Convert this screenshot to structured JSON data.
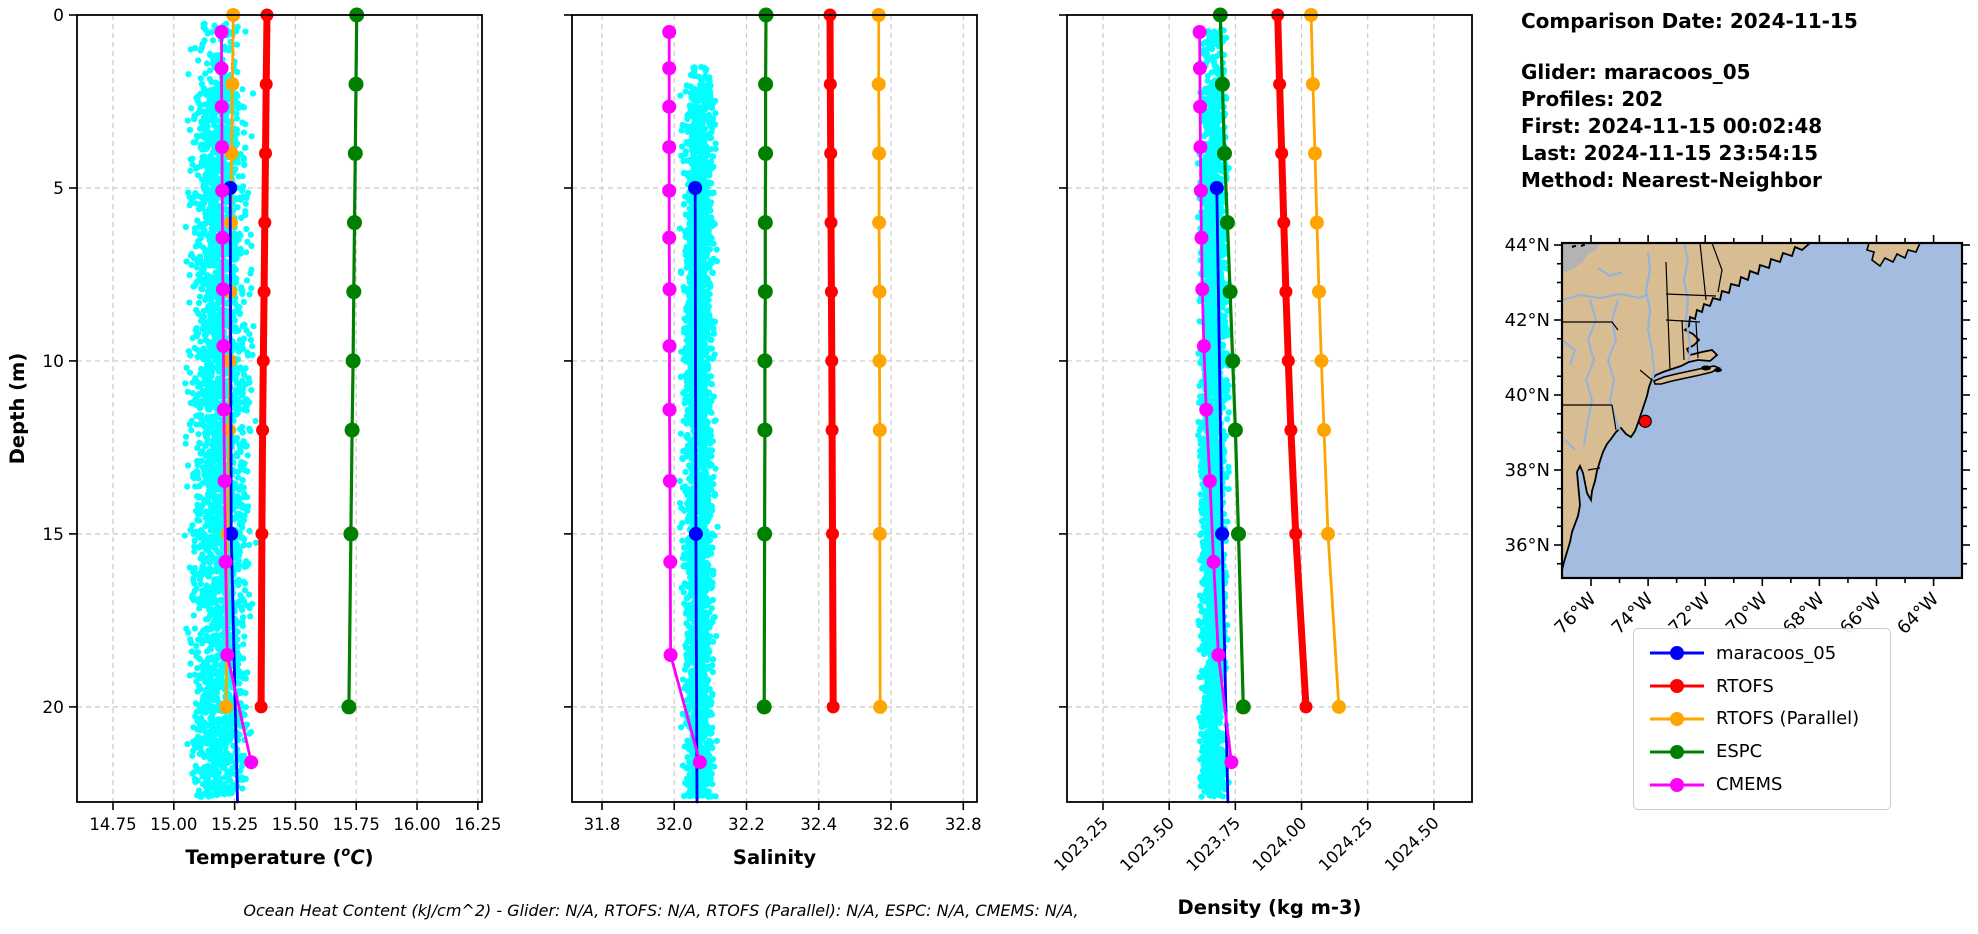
{
  "info_panel": {
    "comparison_date": "Comparison Date: 2024-11-15",
    "glider": "Glider: maracoos_05",
    "profiles": "Profiles: 202",
    "first": "First: 2024-11-15 00:02:48",
    "last": "Last: 2024-11-15 23:54:15",
    "method": "Method: Nearest-Neighbor"
  },
  "legend": {
    "items": [
      {
        "label": "maracoos_05",
        "color": "#0000ff"
      },
      {
        "label": "RTOFS",
        "color": "#ff0000"
      },
      {
        "label": "RTOFS (Parallel)",
        "color": "#ffa500"
      },
      {
        "label": "ESPC",
        "color": "#008000"
      },
      {
        "label": "CMEMS",
        "color": "#ff00ff"
      }
    ]
  },
  "caption": "Ocean Heat Content (kJ/cm^2) - Glider: N/A,  RTOFS: N/A,  RTOFS (Parallel): N/A,  ESPC: N/A,  CMEMS: N/A,",
  "colors": {
    "scatter": "#00ffff",
    "grid": "#c9c9c9",
    "axis": "#000000"
  },
  "chart_data": [
    {
      "id": "temperature",
      "type": "line+scatter",
      "xlabel": {
        "pre": "Temperature (",
        "sup": "o",
        "it": "C",
        "post": ")"
      },
      "ylabel": "Depth (m)",
      "xlim": [
        14.602,
        16.267
      ],
      "xticks": [
        14.75,
        15.0,
        15.25,
        15.5,
        15.75,
        16.0,
        16.25
      ],
      "xtick_labels": [
        "14.75",
        "15.00",
        "15.25",
        "15.50",
        "15.75",
        "16.00",
        "16.25"
      ],
      "xtick_rotation": 0,
      "ylim": [
        0,
        22.75
      ],
      "yticks": [
        0,
        5,
        10,
        15,
        20
      ],
      "ytick_labels": [
        "0",
        "5",
        "10",
        "15",
        "20"
      ],
      "show_ytick_labels": true,
      "grid": true,
      "scatter": {
        "name": "glider-profiles-cloud",
        "center": 15.19,
        "spread": 0.085,
        "clip": 0.148,
        "dmin": 0.25,
        "dmax": 22.6,
        "n": 3200
      },
      "series": [
        {
          "name": "RTOFS",
          "color": "#ff0000",
          "width": 7,
          "marker_r": 6.5,
          "depths": [
            0,
            2,
            4,
            6,
            8,
            10,
            12,
            15,
            20
          ],
          "values": [
            15.383,
            15.38,
            15.377,
            15.374,
            15.371,
            15.368,
            15.365,
            15.362,
            15.359
          ]
        },
        {
          "name": "RTOFS (Parallel)",
          "color": "#ffa500",
          "width": 2.8,
          "marker_r": 7,
          "depths": [
            0,
            2,
            4,
            6,
            8,
            10,
            12,
            15,
            20
          ],
          "values": [
            15.244,
            15.241,
            15.238,
            15.235,
            15.232,
            15.229,
            15.226,
            15.221,
            15.215
          ]
        },
        {
          "name": "ESPC",
          "color": "#008000",
          "width": 3.2,
          "marker_r": 7.5,
          "depths": [
            0,
            2,
            4,
            6,
            8,
            10,
            12,
            15,
            20
          ],
          "values": [
            15.752,
            15.749,
            15.746,
            15.743,
            15.74,
            15.737,
            15.733,
            15.728,
            15.72
          ]
        },
        {
          "name": "maracoos_05",
          "color": "#0000ff",
          "width": 2.8,
          "marker_r": 7,
          "depths": [
            5,
            15,
            22.75
          ],
          "marker_depths": [
            5,
            15
          ],
          "values": [
            15.232,
            15.236,
            15.262
          ]
        },
        {
          "name": "CMEMS",
          "color": "#ff00ff",
          "width": 2.8,
          "marker_r": 7,
          "depths": [
            0.49,
            1.54,
            2.65,
            3.82,
            5.08,
            6.44,
            7.93,
            9.57,
            11.41,
            13.47,
            15.81,
            18.5,
            21.6
          ],
          "values": [
            15.196,
            15.196,
            15.197,
            15.198,
            15.199,
            15.2,
            15.202,
            15.204,
            15.206,
            15.209,
            15.213,
            15.22,
            15.318
          ]
        }
      ]
    },
    {
      "id": "salinity",
      "type": "line+scatter",
      "xlabel": {
        "pre": "Salinity",
        "sup": "",
        "it": "",
        "post": ""
      },
      "ylabel": "",
      "xlim": [
        31.717,
        32.838
      ],
      "xticks": [
        31.8,
        32.0,
        32.2,
        32.4,
        32.6,
        32.8
      ],
      "xtick_labels": [
        "31.8",
        "32.0",
        "32.2",
        "32.4",
        "32.6",
        "32.8"
      ],
      "xtick_rotation": 0,
      "ylim": [
        0,
        22.75
      ],
      "yticks": [
        0,
        5,
        10,
        15,
        20
      ],
      "ytick_labels": [
        "0",
        "5",
        "10",
        "15",
        "20"
      ],
      "show_ytick_labels": false,
      "grid": true,
      "scatter": {
        "name": "glider-profiles-cloud",
        "center": 32.068,
        "spread": 0.03,
        "clip": 0.052,
        "dmin": 1.5,
        "dmax": 22.6,
        "n": 2800
      },
      "series": [
        {
          "name": "RTOFS",
          "color": "#ff0000",
          "width": 7,
          "marker_r": 6.5,
          "depths": [
            0,
            2,
            4,
            6,
            8,
            10,
            12,
            15,
            20
          ],
          "values": [
            32.431,
            32.432,
            32.433,
            32.434,
            32.435,
            32.436,
            32.437,
            32.438,
            32.44
          ]
        },
        {
          "name": "RTOFS (Parallel)",
          "color": "#ffa500",
          "width": 2.8,
          "marker_r": 7,
          "depths": [
            0,
            2,
            4,
            6,
            8,
            10,
            12,
            15,
            20
          ],
          "values": [
            32.566,
            32.566,
            32.567,
            32.567,
            32.568,
            32.568,
            32.569,
            32.569,
            32.57
          ]
        },
        {
          "name": "ESPC",
          "color": "#008000",
          "width": 3.2,
          "marker_r": 7.5,
          "depths": [
            0,
            2,
            4,
            6,
            8,
            10,
            12,
            15,
            20
          ],
          "values": [
            32.254,
            32.253,
            32.253,
            32.252,
            32.252,
            32.251,
            32.251,
            32.25,
            32.249
          ]
        },
        {
          "name": "maracoos_05",
          "color": "#0000ff",
          "width": 2.8,
          "marker_r": 7,
          "depths": [
            5,
            15,
            22.75
          ],
          "marker_depths": [
            5,
            15
          ],
          "values": [
            32.058,
            32.06,
            32.063
          ]
        },
        {
          "name": "CMEMS",
          "color": "#ff00ff",
          "width": 2.8,
          "marker_r": 7,
          "depths": [
            0.49,
            1.54,
            2.65,
            3.82,
            5.08,
            6.44,
            7.93,
            9.57,
            11.41,
            13.47,
            15.81,
            18.5,
            21.6
          ],
          "values": [
            31.986,
            31.986,
            31.986,
            31.986,
            31.986,
            31.986,
            31.987,
            31.987,
            31.987,
            31.988,
            31.989,
            31.99,
            32.071
          ]
        }
      ]
    },
    {
      "id": "density",
      "type": "line+scatter",
      "xlabel": {
        "pre": "Density (kg m-3)",
        "sup": "",
        "it": "",
        "post": ""
      },
      "ylabel": "",
      "xlim": [
        1023.114,
        1024.644
      ],
      "xticks": [
        1023.25,
        1023.5,
        1023.75,
        1024.0,
        1024.25,
        1024.5
      ],
      "xtick_labels": [
        "1023.25",
        "1023.50",
        "1023.75",
        "1024.00",
        "1024.25",
        "1024.50"
      ],
      "xtick_rotation": 45,
      "ylim": [
        0,
        22.75
      ],
      "yticks": [
        0,
        5,
        10,
        15,
        20
      ],
      "ytick_labels": [
        "0",
        "5",
        "10",
        "15",
        "20"
      ],
      "show_ytick_labels": false,
      "grid": true,
      "scatter": {
        "name": "glider-profiles-cloud",
        "center": 1023.667,
        "spread": 0.036,
        "clip": 0.058,
        "dmin": 0.4,
        "dmax": 22.6,
        "n": 2800
      },
      "series": [
        {
          "name": "RTOFS",
          "color": "#ff0000",
          "width": 7,
          "marker_r": 6.5,
          "depths": [
            0,
            2,
            4,
            6,
            8,
            10,
            12,
            15,
            20
          ],
          "values": [
            1023.91,
            1023.917,
            1023.925,
            1023.933,
            1023.941,
            1023.95,
            1023.96,
            1023.978,
            1024.017
          ]
        },
        {
          "name": "RTOFS (Parallel)",
          "color": "#ffa500",
          "width": 2.8,
          "marker_r": 7,
          "depths": [
            0,
            2,
            4,
            6,
            8,
            10,
            12,
            15,
            20
          ],
          "values": [
            1024.036,
            1024.043,
            1024.051,
            1024.058,
            1024.066,
            1024.075,
            1024.085,
            1024.1,
            1024.141
          ]
        },
        {
          "name": "ESPC",
          "color": "#008000",
          "width": 3.2,
          "marker_r": 7.5,
          "depths": [
            0,
            2,
            4,
            6,
            8,
            10,
            12,
            15,
            20
          ],
          "values": [
            1023.693,
            1023.701,
            1023.709,
            1023.72,
            1023.73,
            1023.74,
            1023.75,
            1023.762,
            1023.78
          ]
        },
        {
          "name": "maracoos_05",
          "color": "#0000ff",
          "width": 2.8,
          "marker_r": 7,
          "depths": [
            5,
            15,
            22.75
          ],
          "marker_depths": [
            5,
            15
          ],
          "values": [
            1023.68,
            1023.7,
            1023.722
          ]
        },
        {
          "name": "CMEMS",
          "color": "#ff00ff",
          "width": 2.8,
          "marker_r": 7,
          "depths": [
            0.49,
            1.54,
            2.65,
            3.82,
            5.08,
            6.44,
            7.93,
            9.57,
            11.41,
            13.47,
            15.81,
            18.5,
            21.6
          ],
          "values": [
            1023.615,
            1023.616,
            1023.617,
            1023.618,
            1023.62,
            1023.622,
            1023.625,
            1023.631,
            1023.64,
            1023.654,
            1023.668,
            1023.686,
            1023.735
          ]
        }
      ]
    }
  ],
  "map": {
    "lat_ticks": [
      {
        "label": "44°N",
        "lat": 44
      },
      {
        "label": "42°N",
        "lat": 42
      },
      {
        "label": "40°N",
        "lat": 40
      },
      {
        "label": "38°N",
        "lat": 38
      },
      {
        "label": "36°N",
        "lat": 36
      }
    ],
    "lon_ticks": [
      {
        "label": "76°W",
        "lon": -76
      },
      {
        "label": "74°W",
        "lon": -74
      },
      {
        "label": "72°W",
        "lon": -72
      },
      {
        "label": "70°W",
        "lon": -70
      },
      {
        "label": "68°W",
        "lon": -68
      },
      {
        "label": "66°W",
        "lon": -66
      },
      {
        "label": "64°W",
        "lon": -64
      }
    ],
    "glider_marker": {
      "lat": 39.3,
      "lon": -74.1,
      "color": "#ff0000"
    },
    "colors": {
      "land": "#d8bc92",
      "ocean": "#a3bcdf",
      "gray_patch": "#b3b3b3",
      "river": "#8fb3e2",
      "coast": "#000000"
    }
  }
}
